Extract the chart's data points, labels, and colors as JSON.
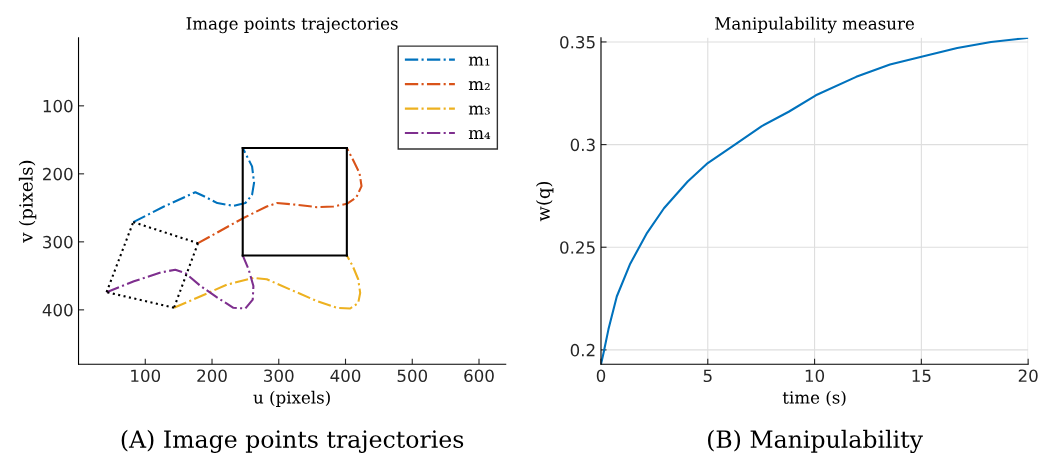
{
  "chart_data": [
    {
      "type": "line",
      "title": "Image points trajectories",
      "xlabel": "u (pixels)",
      "ylabel": "v (pixels)",
      "xlim": [
        0,
        640
      ],
      "ylim": [
        480,
        0
      ],
      "xticks": [
        100,
        200,
        300,
        400,
        500,
        600
      ],
      "yticks": [
        100,
        200,
        300,
        400
      ],
      "grid": false,
      "legend": "top right",
      "annotations": [
        "(A) Image points trajectories"
      ],
      "series": [
        {
          "name": "m₁",
          "color": "#0072bd",
          "line_style": "dashdot",
          "x": [
            82,
            128,
            175,
            188,
            208,
            232,
            250,
            260,
            263,
            260,
            246
          ],
          "values": [
            271,
            248,
            227,
            233,
            243,
            247,
            243,
            231,
            213,
            189,
            162
          ]
        },
        {
          "name": "m₂",
          "color": "#d95319",
          "line_style": "dashdot",
          "x": [
            179,
            212,
            247,
            282,
            297,
            322,
            357,
            382,
            402,
            416,
            424,
            421,
            411,
            402
          ],
          "values": [
            302,
            284,
            265,
            248,
            243,
            245,
            249,
            248,
            244,
            235,
            218,
            199,
            179,
            162
          ]
        },
        {
          "name": "m₃",
          "color": "#edb120",
          "line_style": "dashdot",
          "x": [
            143,
            183,
            222,
            262,
            282,
            317,
            357,
            387,
            407,
            419,
            422,
            419,
            411,
            402
          ],
          "values": [
            397,
            380,
            363,
            353,
            355,
            370,
            387,
            397,
            398,
            390,
            375,
            355,
            336,
            320
          ]
        },
        {
          "name": "m₄",
          "color": "#7e2f8e",
          "line_style": "dashdot",
          "x": [
            42,
            83,
            123,
            145,
            160,
            183,
            208,
            232,
            250,
            261,
            262,
            255,
            246
          ],
          "values": [
            374,
            358,
            345,
            341,
            346,
            365,
            382,
            397,
            398,
            385,
            365,
            341,
            320
          ]
        },
        {
          "color": "#000000",
          "line_style": "solid",
          "x": [
            246,
            402
          ],
          "values": [
            162,
            162
          ]
        },
        {
          "color": "#000000",
          "line_style": "solid",
          "x": [
            402,
            402
          ],
          "values": [
            162,
            320
          ]
        },
        {
          "color": "#000000",
          "line_style": "solid",
          "x": [
            402,
            246
          ],
          "values": [
            320,
            320
          ]
        },
        {
          "color": "#000000",
          "line_style": "solid",
          "x": [
            246,
            246
          ],
          "values": [
            320,
            162
          ]
        },
        {
          "color": "#000000",
          "line_style": "dotted",
          "x": [
            82,
            179
          ],
          "values": [
            271,
            302
          ]
        },
        {
          "color": "#000000",
          "line_style": "dotted",
          "x": [
            179,
            143
          ],
          "values": [
            302,
            397
          ]
        },
        {
          "color": "#000000",
          "line_style": "dotted",
          "x": [
            143,
            42
          ],
          "values": [
            397,
            374
          ]
        },
        {
          "color": "#000000",
          "line_style": "dotted",
          "x": [
            42,
            82
          ],
          "values": [
            374,
            271
          ]
        }
      ]
    },
    {
      "type": "line",
      "title": "Manipulability measure",
      "xlabel": "time (s)",
      "ylabel": "w(q)",
      "xlim": [
        0,
        20
      ],
      "ylim": [
        0.193,
        0.352
      ],
      "xticks": [
        0,
        5,
        10,
        15,
        20
      ],
      "yticks": [
        0.2,
        0.25,
        0.3,
        0.35
      ],
      "grid": true,
      "legend": false,
      "annotations": [
        "(B) Manipulability"
      ],
      "series": [
        {
          "color": "#0072bd",
          "line_style": "solid",
          "x": [
            0,
            0.11,
            0.35,
            0.74,
            1.37,
            2.16,
            2.95,
            4.06,
            5.0,
            6.27,
            7.53,
            8.79,
            10.06,
            11.95,
            13.53,
            15.1,
            16.68,
            18.26,
            20
          ],
          "values": [
            0.193,
            0.198,
            0.21,
            0.226,
            0.242,
            0.257,
            0.269,
            0.282,
            0.291,
            0.3,
            0.309,
            0.316,
            0.324,
            0.333,
            0.339,
            0.343,
            0.347,
            0.35,
            0.352
          ]
        }
      ]
    }
  ]
}
